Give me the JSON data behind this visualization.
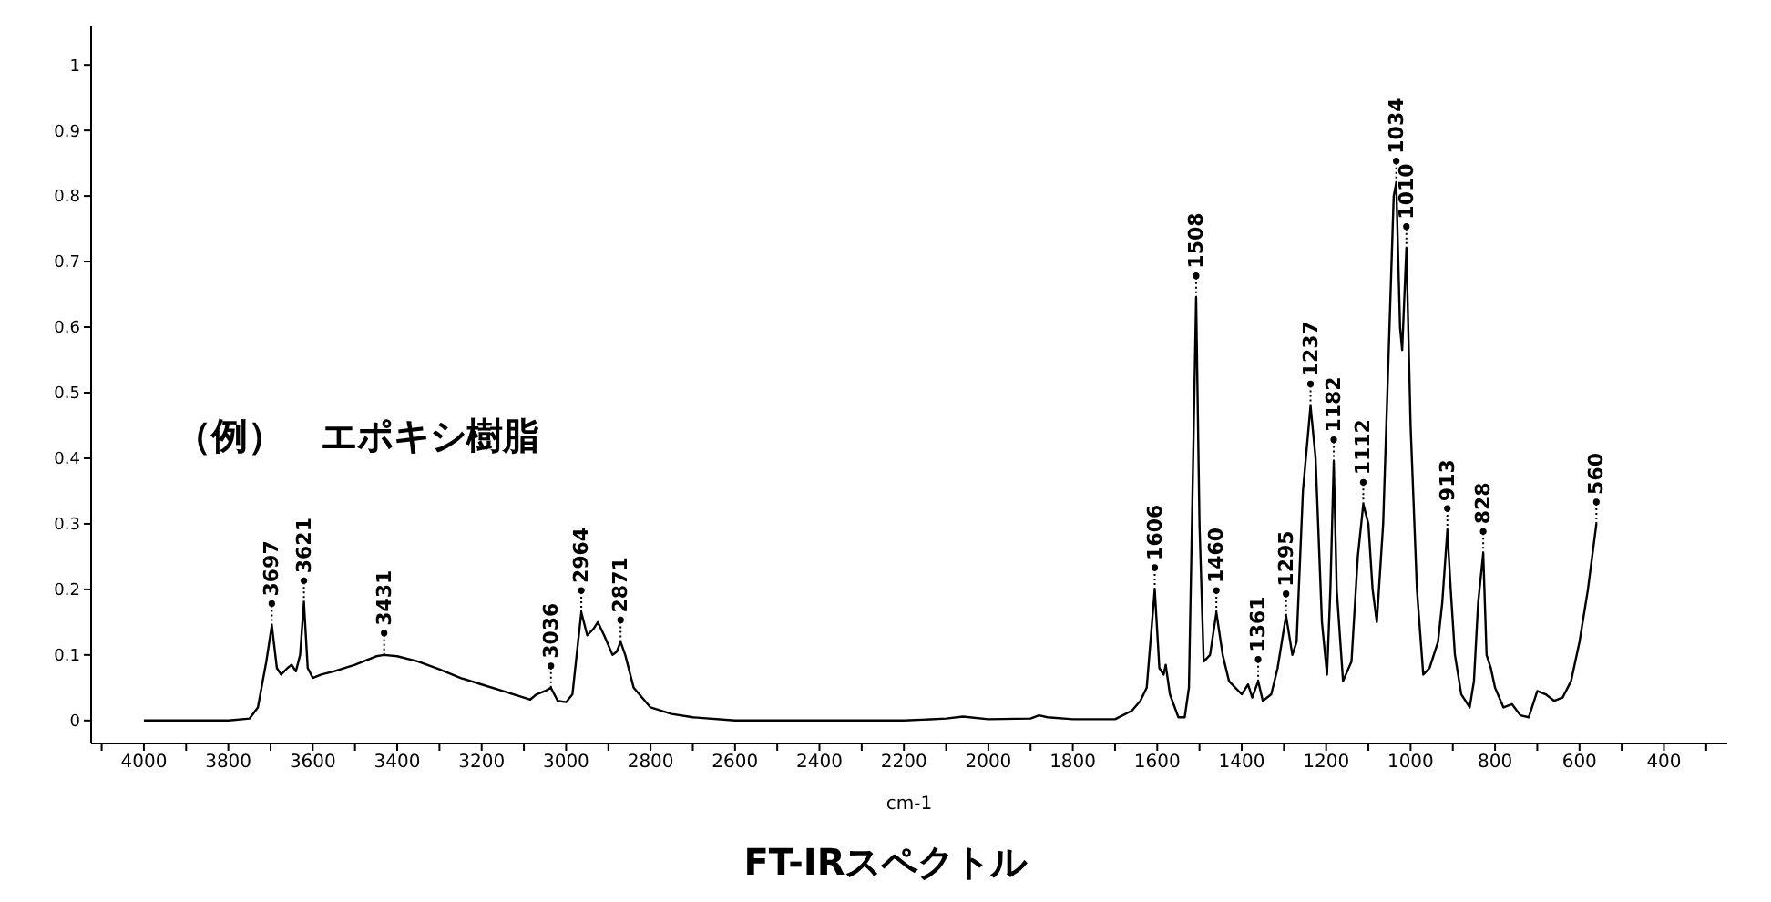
{
  "chart_data": {
    "type": "line",
    "title": "FT-IRスペクトル",
    "xlabel": "cm-1",
    "x": [
      4000,
      3800,
      3750,
      3730,
      3710,
      3697,
      3685,
      3675,
      3660,
      3650,
      3640,
      3630,
      3621,
      3612,
      3600,
      3580,
      3550,
      3500,
      3450,
      3431,
      3400,
      3350,
      3300,
      3250,
      3200,
      3150,
      3100,
      3085,
      3070,
      3050,
      3036,
      3020,
      3000,
      2985,
      2975,
      2964,
      2950,
      2935,
      2925,
      2910,
      2890,
      2880,
      2871,
      2860,
      2840,
      2800,
      2750,
      2700,
      2600,
      2400,
      2200,
      2100,
      2060,
      2000,
      1900,
      1880,
      1860,
      1800,
      1700,
      1660,
      1640,
      1625,
      1606,
      1595,
      1585,
      1580,
      1570,
      1550,
      1535,
      1525,
      1515,
      1508,
      1500,
      1490,
      1475,
      1460,
      1445,
      1430,
      1415,
      1400,
      1385,
      1375,
      1361,
      1350,
      1330,
      1315,
      1295,
      1280,
      1270,
      1255,
      1237,
      1225,
      1210,
      1198,
      1190,
      1182,
      1175,
      1160,
      1140,
      1125,
      1112,
      1100,
      1090,
      1080,
      1065,
      1050,
      1040,
      1034,
      1025,
      1020,
      1010,
      1000,
      985,
      970,
      955,
      935,
      925,
      913,
      905,
      895,
      880,
      860,
      850,
      840,
      828,
      820,
      810,
      800,
      780,
      760,
      740,
      720,
      700,
      680,
      660,
      640,
      620,
      600,
      580,
      560
    ],
    "series": [
      {
        "color": "#000000",
        "values": [
          0,
          0,
          0.003,
          0.02,
          0.09,
          0.145,
          0.08,
          0.07,
          0.08,
          0.085,
          0.075,
          0.1,
          0.18,
          0.08,
          0.065,
          0.07,
          0.075,
          0.085,
          0.098,
          0.1,
          0.098,
          0.09,
          0.078,
          0.065,
          0.055,
          0.045,
          0.035,
          0.032,
          0.04,
          0.045,
          0.05,
          0.03,
          0.028,
          0.04,
          0.1,
          0.165,
          0.13,
          0.14,
          0.15,
          0.13,
          0.1,
          0.105,
          0.12,
          0.1,
          0.05,
          0.02,
          0.01,
          0.005,
          0,
          0,
          0,
          0.003,
          0.006,
          0.002,
          0.003,
          0.008,
          0.005,
          0.002,
          0.002,
          0.015,
          0.03,
          0.05,
          0.2,
          0.08,
          0.07,
          0.085,
          0.04,
          0.005,
          0.005,
          0.05,
          0.4,
          0.645,
          0.3,
          0.09,
          0.1,
          0.165,
          0.1,
          0.06,
          0.05,
          0.04,
          0.055,
          0.035,
          0.06,
          0.03,
          0.04,
          0.08,
          0.16,
          0.1,
          0.12,
          0.35,
          0.48,
          0.4,
          0.15,
          0.07,
          0.2,
          0.395,
          0.2,
          0.06,
          0.09,
          0.25,
          0.33,
          0.3,
          0.2,
          0.15,
          0.3,
          0.6,
          0.8,
          0.82,
          0.6,
          0.565,
          0.72,
          0.45,
          0.2,
          0.07,
          0.08,
          0.12,
          0.18,
          0.29,
          0.2,
          0.1,
          0.04,
          0.02,
          0.06,
          0.18,
          0.255,
          0.1,
          0.08,
          0.05,
          0.02,
          0.025,
          0.008,
          0.005,
          0.045,
          0.04,
          0.03,
          0.035,
          0.06,
          0.12,
          0.2,
          0.3
        ]
      }
    ],
    "xlim": [
      4125,
      250
    ],
    "xticks": [
      {
        "value": 4100,
        "label": null
      },
      4000,
      {
        "value": 3900,
        "label": null
      },
      3800,
      {
        "value": 3700,
        "label": null
      },
      3600,
      {
        "value": 3500,
        "label": null
      },
      3400,
      {
        "value": 3300,
        "label": null
      },
      3200,
      {
        "value": 3100,
        "label": null
      },
      3000,
      {
        "value": 2900,
        "label": null
      },
      2800,
      {
        "value": 2700,
        "label": null
      },
      2600,
      {
        "value": 2500,
        "label": null
      },
      2400,
      {
        "value": 2300,
        "label": null
      },
      2200,
      {
        "value": 2100,
        "label": null
      },
      2000,
      {
        "value": 1900,
        "label": null
      },
      1800,
      {
        "value": 1700,
        "label": null
      },
      1600,
      {
        "value": 1500,
        "label": null
      },
      1400,
      {
        "value": 1300,
        "label": null
      },
      1200,
      {
        "value": 1100,
        "label": null
      },
      1000,
      {
        "value": 900,
        "label": null
      },
      800,
      {
        "value": 700,
        "label": null
      },
      600,
      {
        "value": 500,
        "label": null
      },
      400,
      {
        "value": 300,
        "label": null
      }
    ],
    "ylim": [
      -0.035,
      1.06
    ],
    "yticks": [
      0,
      0.1,
      0.2,
      0.3,
      0.4,
      0.5,
      0.6,
      0.7,
      0.8,
      0.9,
      1
    ],
    "grid": false,
    "line_style": "solid",
    "annotations": [
      "（例）　エポキシ樹脂",
      {
        "text": "3697",
        "x": 3697,
        "y": 0.145
      },
      {
        "text": "3621",
        "x": 3621,
        "y": 0.18
      },
      {
        "text": "3431",
        "x": 3431,
        "y": 0.1
      },
      {
        "text": "3036",
        "x": 3036,
        "y": 0.05
      },
      {
        "text": "2964",
        "x": 2964,
        "y": 0.165
      },
      {
        "text": "2871",
        "x": 2871,
        "y": 0.12
      },
      {
        "text": "1606",
        "x": 1606,
        "y": 0.2
      },
      {
        "text": "1508",
        "x": 1508,
        "y": 0.645
      },
      {
        "text": "1460",
        "x": 1460,
        "y": 0.165
      },
      {
        "text": "1361",
        "x": 1361,
        "y": 0.06
      },
      {
        "text": "1295",
        "x": 1295,
        "y": 0.16
      },
      {
        "text": "1237",
        "x": 1237,
        "y": 0.48
      },
      {
        "text": "1182",
        "x": 1182,
        "y": 0.395
      },
      {
        "text": "1112",
        "x": 1112,
        "y": 0.33
      },
      {
        "text": "1034",
        "x": 1034,
        "y": 0.82
      },
      {
        "text": "1010",
        "x": 1010,
        "y": 0.72
      },
      {
        "text": "913",
        "x": 913,
        "y": 0.29
      },
      {
        "text": "828",
        "x": 828,
        "y": 0.255
      },
      {
        "text": "560",
        "x": 560,
        "y": 0.3
      }
    ]
  }
}
